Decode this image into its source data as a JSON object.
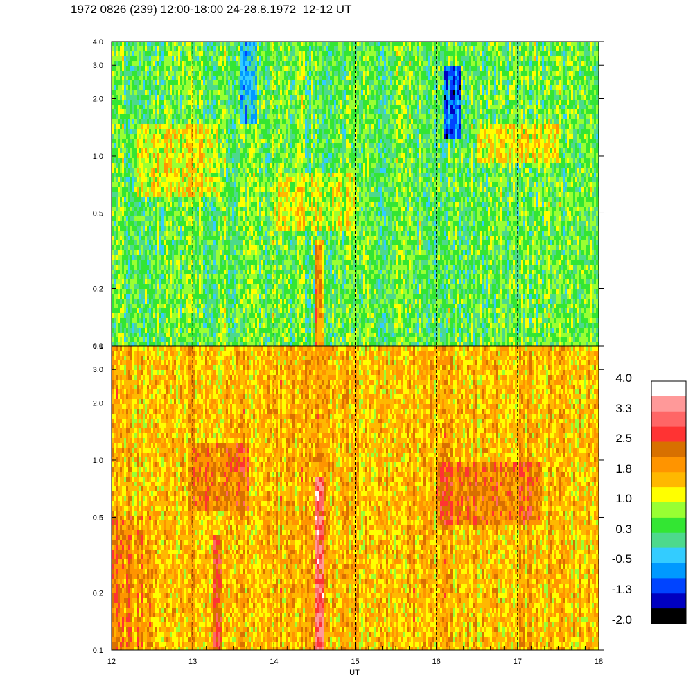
{
  "title": "1972 0826 (239) 12:00-18:00 24-28.8.1972  12-12 UT",
  "chart_data": [
    {
      "type": "heatmap",
      "panel": "top",
      "x_range": [
        12,
        18
      ],
      "x_ticks": [
        "12",
        "13",
        "14",
        "15",
        "16",
        "17",
        "18"
      ],
      "y_scale": "log",
      "y_range": [
        0.1,
        4.0
      ],
      "y_ticks": [
        "0.1",
        "0.2",
        "0.5",
        "1.0",
        "2.0",
        "3.0",
        "4.0"
      ],
      "vertical_dashed_lines_at": [
        13,
        14,
        15,
        16,
        17
      ],
      "background_level": 0.5,
      "features": [
        {
          "x": [
            12.3,
            13.3
          ],
          "y": [
            0.6,
            1.5
          ],
          "level": 1.2
        },
        {
          "x": [
            14.0,
            15.0
          ],
          "y": [
            0.4,
            0.8
          ],
          "level": 1.1
        },
        {
          "x": [
            16.5,
            17.5
          ],
          "y": [
            0.9,
            1.5
          ],
          "level": 1.2
        },
        {
          "x": [
            13.6,
            13.8
          ],
          "y": [
            1.5,
            4.0
          ],
          "level": -0.6
        },
        {
          "x": [
            16.1,
            16.3
          ],
          "y": [
            1.2,
            3.0
          ],
          "level": -0.9
        },
        {
          "x": [
            14.52,
            14.62
          ],
          "y": [
            0.1,
            0.35
          ],
          "level": 1.9
        }
      ]
    },
    {
      "type": "heatmap",
      "panel": "bottom",
      "x_range": [
        12,
        18
      ],
      "x_ticks": [
        "12",
        "13",
        "14",
        "15",
        "16",
        "17",
        "18"
      ],
      "xlabel": "UT",
      "y_scale": "log",
      "y_range": [
        0.1,
        4.0
      ],
      "y_ticks": [
        "0.1",
        "0.2",
        "0.5",
        "1.0",
        "2.0",
        "3.0",
        "4.0"
      ],
      "vertical_dashed_lines_at": [
        13,
        14,
        15,
        16,
        17
      ],
      "background_level": 1.6,
      "features": [
        {
          "x": [
            13.0,
            13.7
          ],
          "y": [
            0.55,
            1.2
          ],
          "level": 2.2
        },
        {
          "x": [
            16.0,
            17.3
          ],
          "y": [
            0.45,
            1.0
          ],
          "level": 2.2
        },
        {
          "x": [
            13.25,
            13.35
          ],
          "y": [
            0.1,
            0.4
          ],
          "level": 2.8
        },
        {
          "x": [
            14.52,
            14.62
          ],
          "y": [
            0.1,
            0.8
          ],
          "level": 2.8
        },
        {
          "x": [
            12.0,
            12.5
          ],
          "y": [
            0.1,
            0.5
          ],
          "level": 2.0
        }
      ]
    }
  ],
  "colorbar": {
    "labels": [
      "4.0",
      "3.3",
      "2.5",
      "1.8",
      "1.0",
      "0.3",
      "-0.5",
      "-1.3",
      "-2.0"
    ],
    "range": [
      -2.0,
      4.0
    ],
    "colors": [
      "#ffffff",
      "#ff9999",
      "#ff6666",
      "#ff3333",
      "#d87000",
      "#ff9400",
      "#ffb800",
      "#ffff00",
      "#99ff33",
      "#33e633",
      "#4dd98c",
      "#33ccff",
      "#0099ff",
      "#0044ff",
      "#0000c0",
      "#000000"
    ]
  }
}
